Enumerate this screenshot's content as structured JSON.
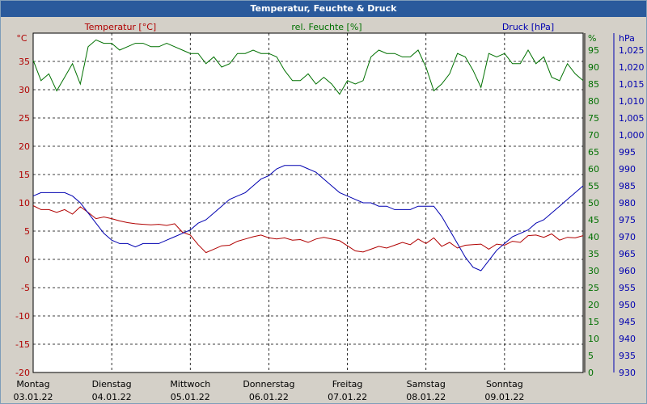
{
  "window": {
    "title": "Temperatur, Feuchte & Druck"
  },
  "chart_data": {
    "type": "line",
    "title": "Temperatur, Feuchte & Druck",
    "colors": {
      "temperature": "#b00000",
      "humidity": "#007000",
      "pressure": "#0000b0"
    },
    "axes": {
      "temperature": {
        "label": "Temperatur [°C]",
        "unit": "°C",
        "min": -20,
        "max": 40,
        "ticks": [
          -20,
          -15,
          -10,
          -5,
          0,
          5,
          10,
          15,
          20,
          25,
          30,
          35
        ]
      },
      "humidity": {
        "label": "rel. Feuchte [%]",
        "unit": "%",
        "min": 0,
        "max": 100,
        "ticks": [
          0,
          5,
          10,
          15,
          20,
          25,
          30,
          35,
          40,
          45,
          50,
          55,
          60,
          65,
          70,
          75,
          80,
          85,
          90,
          95
        ]
      },
      "pressure": {
        "label": "Druck [hPa]",
        "unit": "hPa",
        "min": 930,
        "max": 1030,
        "ticks": [
          930,
          935,
          940,
          945,
          950,
          955,
          960,
          965,
          970,
          975,
          980,
          985,
          990,
          995,
          1000,
          1005,
          1010,
          1015,
          1020,
          1025
        ]
      },
      "x": {
        "min": 0,
        "max": 7
      }
    },
    "grid": true,
    "days": [
      {
        "weekday": "Montag",
        "date": "03.01.22"
      },
      {
        "weekday": "Dienstag",
        "date": "04.01.22"
      },
      {
        "weekday": "Mittwoch",
        "date": "05.01.22"
      },
      {
        "weekday": "Donnerstag",
        "date": "06.01.22"
      },
      {
        "weekday": "Freitag",
        "date": "07.01.22"
      },
      {
        "weekday": "Samstag",
        "date": "08.01.22"
      },
      {
        "weekday": "Sonntag",
        "date": "09.01.22"
      }
    ],
    "series": [
      {
        "name": "Temperatur [°C]",
        "axis": "temperature",
        "x": [
          0,
          0.1,
          0.2,
          0.3,
          0.4,
          0.5,
          0.6,
          0.7,
          0.8,
          0.9,
          1.0,
          1.1,
          1.2,
          1.3,
          1.4,
          1.5,
          1.6,
          1.7,
          1.8,
          1.9,
          2.0,
          2.1,
          2.2,
          2.3,
          2.4,
          2.5,
          2.6,
          2.7,
          2.8,
          2.9,
          3.0,
          3.1,
          3.2,
          3.3,
          3.4,
          3.5,
          3.6,
          3.7,
          3.8,
          3.9,
          4.0,
          4.1,
          4.2,
          4.3,
          4.4,
          4.5,
          4.6,
          4.7,
          4.8,
          4.9,
          5.0,
          5.1,
          5.2,
          5.3,
          5.4,
          5.5,
          5.6,
          5.7,
          5.8,
          5.9,
          6.0,
          6.1,
          6.2,
          6.3,
          6.4,
          6.5,
          6.6,
          6.7,
          6.8,
          6.9,
          7.0
        ],
        "values": [
          9.5,
          8.8,
          8.8,
          8.3,
          8.8,
          8.0,
          9.3,
          8.3,
          7.2,
          7.5,
          7.2,
          6.8,
          6.5,
          6.3,
          6.2,
          6.1,
          6.2,
          6.0,
          6.3,
          4.8,
          4.3,
          2.6,
          1.2,
          1.8,
          2.4,
          2.5,
          3.2,
          3.6,
          4.0,
          4.3,
          3.8,
          3.6,
          3.8,
          3.4,
          3.5,
          3.0,
          3.6,
          3.9,
          3.6,
          3.3,
          2.4,
          1.5,
          1.3,
          1.8,
          2.3,
          2.0,
          2.5,
          3.0,
          2.6,
          3.6,
          2.8,
          3.8,
          2.3,
          3.0,
          2.0,
          2.5,
          2.6,
          2.7,
          1.8,
          2.7,
          2.5,
          3.2,
          3.0,
          4.2,
          4.3,
          3.9,
          4.5,
          3.4,
          3.9,
          3.8,
          4.2
        ]
      },
      {
        "name": "rel. Feuchte [%]",
        "axis": "humidity",
        "x": [
          0,
          0.1,
          0.2,
          0.3,
          0.4,
          0.5,
          0.6,
          0.7,
          0.8,
          0.9,
          1.0,
          1.1,
          1.2,
          1.3,
          1.4,
          1.5,
          1.6,
          1.7,
          1.8,
          1.9,
          2.0,
          2.1,
          2.2,
          2.3,
          2.4,
          2.5,
          2.6,
          2.7,
          2.8,
          2.9,
          3.0,
          3.1,
          3.2,
          3.3,
          3.4,
          3.5,
          3.6,
          3.7,
          3.8,
          3.9,
          4.0,
          4.1,
          4.2,
          4.3,
          4.4,
          4.5,
          4.6,
          4.7,
          4.8,
          4.9,
          5.0,
          5.1,
          5.2,
          5.3,
          5.4,
          5.5,
          5.6,
          5.7,
          5.8,
          5.9,
          6.0,
          6.1,
          6.2,
          6.3,
          6.4,
          6.5,
          6.6,
          6.7,
          6.8,
          6.9,
          7.0
        ],
        "values": [
          92,
          86,
          88,
          83,
          87,
          91,
          85,
          96,
          98,
          97,
          97,
          95,
          96,
          97,
          97,
          96,
          96,
          97,
          96,
          95,
          94,
          94,
          91,
          93,
          90,
          91,
          94,
          94,
          95,
          94,
          94,
          93,
          89,
          86,
          86,
          88,
          85,
          87,
          85,
          82,
          86,
          85,
          86,
          93,
          95,
          94,
          94,
          93,
          93,
          95,
          90,
          83,
          85,
          88,
          94,
          93,
          89,
          84,
          94,
          93,
          94,
          91,
          91,
          95,
          91,
          93,
          87,
          86,
          91,
          88,
          86
        ]
      },
      {
        "name": "Druck [hPa]",
        "axis": "pressure",
        "x": [
          0,
          0.1,
          0.2,
          0.3,
          0.4,
          0.5,
          0.6,
          0.7,
          0.8,
          0.9,
          1.0,
          1.1,
          1.2,
          1.3,
          1.4,
          1.5,
          1.6,
          1.7,
          1.8,
          1.9,
          2.0,
          2.1,
          2.2,
          2.3,
          2.4,
          2.5,
          2.6,
          2.7,
          2.8,
          2.9,
          3.0,
          3.1,
          3.2,
          3.3,
          3.4,
          3.5,
          3.6,
          3.7,
          3.8,
          3.9,
          4.0,
          4.1,
          4.2,
          4.3,
          4.4,
          4.5,
          4.6,
          4.7,
          4.8,
          4.9,
          5.0,
          5.1,
          5.2,
          5.3,
          5.4,
          5.5,
          5.6,
          5.7,
          5.8,
          5.9,
          6.0,
          6.1,
          6.2,
          6.3,
          6.4,
          6.5,
          6.6,
          6.7,
          6.8,
          6.9,
          7.0
        ],
        "values": [
          982,
          983,
          983,
          983,
          983,
          982,
          980,
          977,
          974,
          971,
          969,
          968,
          968,
          967,
          968,
          968,
          968,
          969,
          970,
          971,
          972,
          974,
          975,
          977,
          979,
          981,
          982,
          983,
          985,
          987,
          988,
          990,
          991,
          991,
          991,
          990,
          989,
          987,
          985,
          983,
          982,
          981,
          980,
          980,
          979,
          979,
          978,
          978,
          978,
          979,
          979,
          979,
          976,
          972,
          968,
          964,
          961,
          960,
          963,
          966,
          968,
          970,
          971,
          972,
          974,
          975,
          977,
          979,
          981,
          983,
          985
        ]
      }
    ]
  }
}
